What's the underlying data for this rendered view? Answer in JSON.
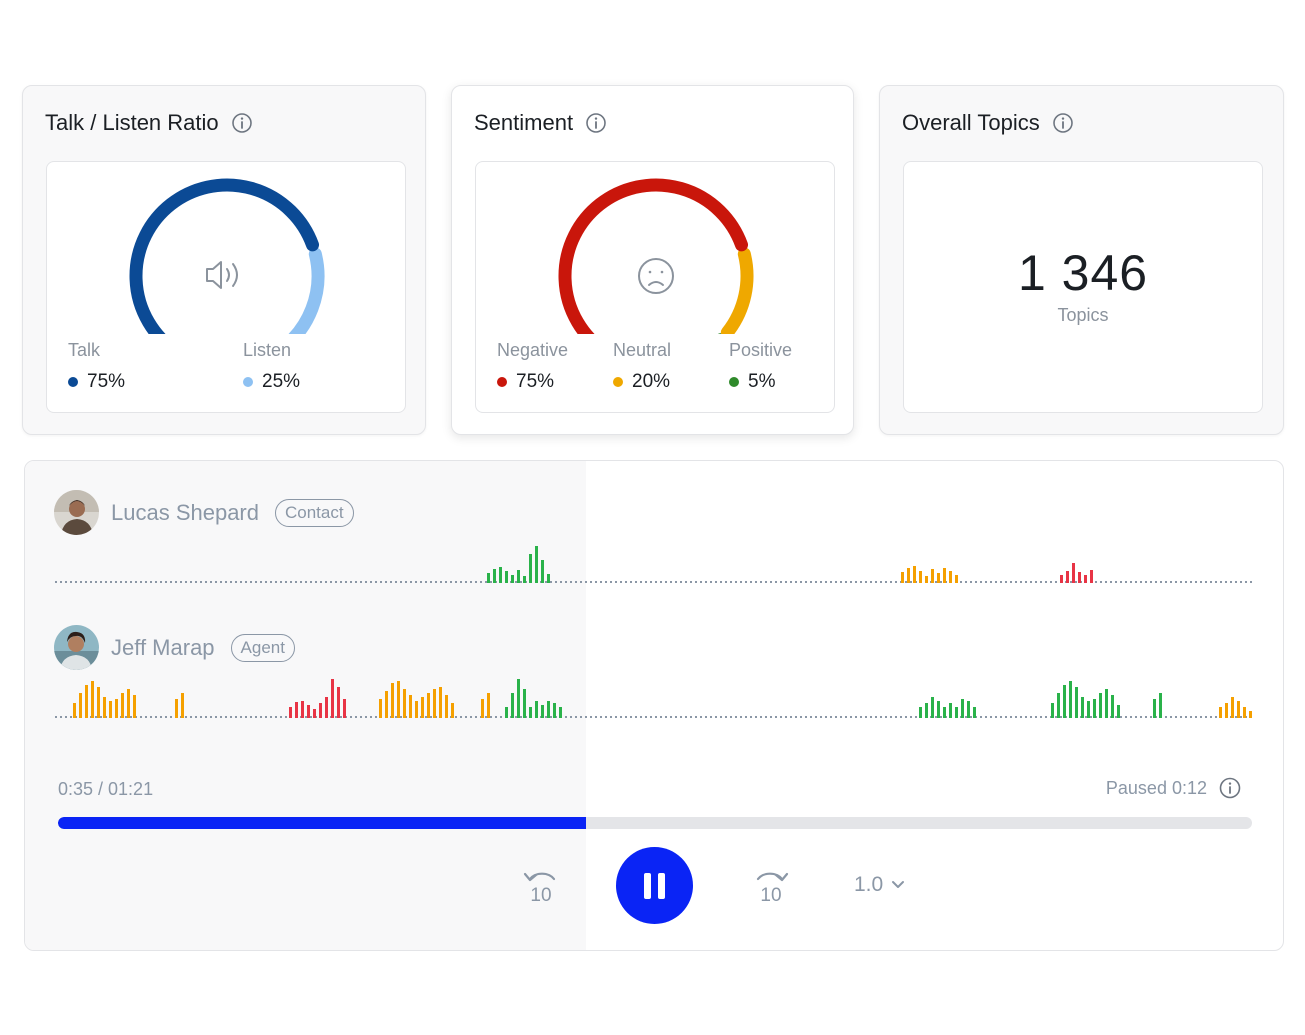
{
  "talk_listen": {
    "title": "Talk / Listen Ratio",
    "icon": "speaker-icon",
    "segments": [
      {
        "label": "Talk",
        "value": "75%",
        "fraction": 0.75,
        "color": "#0b4a95"
      },
      {
        "label": "Listen",
        "value": "25%",
        "fraction": 0.25,
        "color": "#8ec1f2"
      }
    ]
  },
  "sentiment": {
    "title": "Sentiment",
    "icon": "sad-face-icon",
    "segments": [
      {
        "label": "Negative",
        "value": "75%",
        "fraction": 0.75,
        "color": "#c9160b"
      },
      {
        "label": "Neutral",
        "value": "20%",
        "fraction": 0.2,
        "color": "#efa800"
      },
      {
        "label": "Positive",
        "value": "5%",
        "fraction": 0.05,
        "color": "#2f8a2b"
      }
    ]
  },
  "topics": {
    "title": "Overall Topics",
    "count": "1 346",
    "label": "Topics"
  },
  "player": {
    "speakers": [
      {
        "name": "Lucas Shepard",
        "role": "Contact"
      },
      {
        "name": "Jeff Marap",
        "role": "Agent"
      }
    ],
    "current_time": "0:35 / 01:21",
    "paused_text": "Paused 0:12",
    "progress": 0.4423,
    "rewind_label": "10",
    "forward_label": "10",
    "speed": "1.0",
    "colors": {
      "accent": "#0a24f5",
      "positive": "#2ab24a",
      "neutral": "#f5a000",
      "negative": "#e83445"
    }
  }
}
